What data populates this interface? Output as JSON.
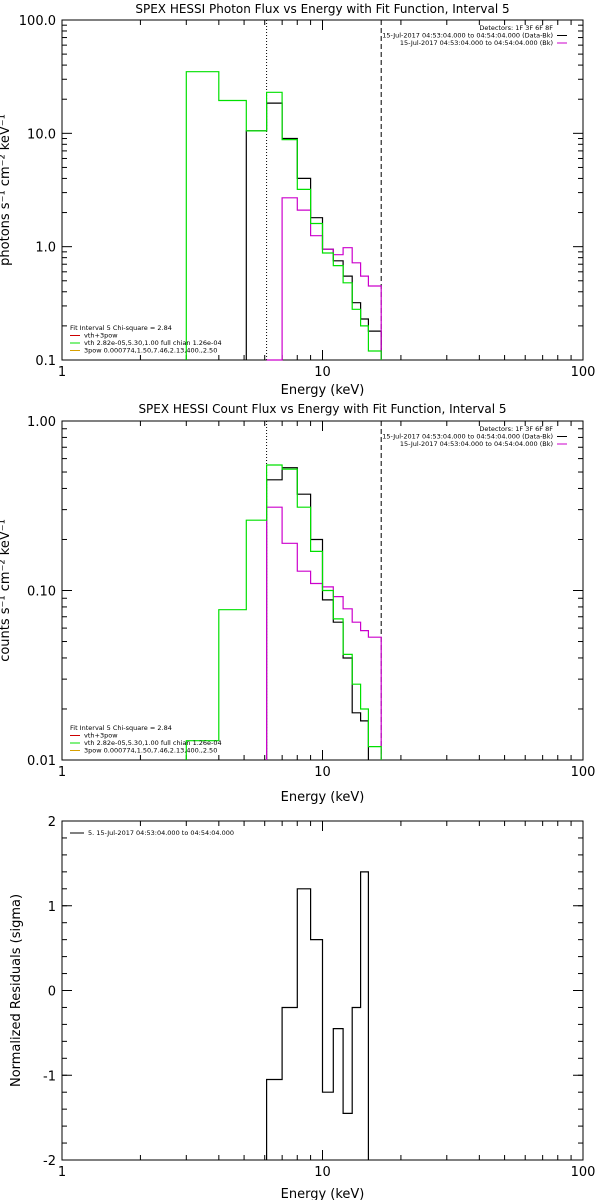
{
  "colors": {
    "black": "#000000",
    "magenta": "#cc00cc",
    "green": "#00e000",
    "red": "#cc0000",
    "orange": "#d8a000",
    "text": "#000000",
    "background": "#ffffff"
  },
  "chart_data": [
    {
      "id": "photon",
      "type": "line",
      "title": "SPEX HESSI Photon Flux vs Energy with Fit Function, Interval 5",
      "xlabel": "Energy (keV)",
      "ylabel": "photons s⁻¹ cm⁻² keV⁻¹",
      "xscale": "log",
      "yscale": "log",
      "xlim": [
        1,
        100
      ],
      "ylim": [
        0.1,
        100
      ],
      "xticks": [
        {
          "v": 1,
          "label": "1"
        },
        {
          "v": 10,
          "label": "10"
        },
        {
          "v": 100,
          "label": "100"
        }
      ],
      "yticks": [
        {
          "v": 0.1,
          "label": "0.1"
        },
        {
          "v": 1,
          "label": "1.0"
        },
        {
          "v": 10,
          "label": "10.0"
        },
        {
          "v": 100,
          "label": "100.0"
        }
      ],
      "vlines": [
        {
          "x": 6.1,
          "style": "dotted"
        },
        {
          "x": 16.8,
          "style": "dashed"
        }
      ],
      "legend_upper": {
        "lines": [
          "Detectors: 1F 3F 6F 8F",
          "15-Jul-2017 04:53:04.000 to 04:54:04.000 (Data-Bk)",
          "15-Jul-2017 04:53:04.000 to 04:54:04.000 (Bk)"
        ]
      },
      "legend_lower": {
        "header": "Fit Interval 5   Chi-square = 2.84",
        "lines": [
          "vth+3pow",
          "vth 2.82e-05,5.30,1.00   full chian 1.26e-04",
          "3pow 0.000774,1.50,7.46,2.13,400.,2.50"
        ]
      },
      "edges": [
        3.0,
        4.0,
        5.1,
        6.1,
        7.0,
        8.0,
        9.0,
        10.0,
        11.0,
        12.0,
        13.0,
        14.0,
        15.0,
        16.8
      ],
      "series": [
        {
          "name": "Data-Bk",
          "color_key": "black",
          "start": 2,
          "values": [
            10.5,
            18.5,
            9.0,
            4.0,
            1.8,
            0.95,
            0.75,
            0.55,
            0.32,
            0.23,
            0.18
          ]
        },
        {
          "name": "Bk",
          "color_key": "magenta",
          "start": 3,
          "values": [
            0.1,
            2.7,
            2.1,
            1.25,
            0.95,
            0.85,
            0.98,
            0.72,
            0.55,
            0.45
          ]
        },
        {
          "name": "vth+3pow",
          "color_key": "green",
          "start": 0,
          "values": [
            35.0,
            19.5,
            10.5,
            23.0,
            8.8,
            3.2,
            1.6,
            0.88,
            0.68,
            0.48,
            0.28,
            0.2,
            0.12
          ]
        }
      ]
    },
    {
      "id": "count",
      "type": "line",
      "title": "SPEX HESSI Count Flux vs Energy with Fit Function, Interval 5",
      "xlabel": "Energy (keV)",
      "ylabel": "counts s⁻¹ cm⁻² keV⁻¹",
      "xscale": "log",
      "yscale": "log",
      "xlim": [
        1,
        100
      ],
      "ylim": [
        0.01,
        1
      ],
      "xticks": [
        {
          "v": 1,
          "label": "1"
        },
        {
          "v": 10,
          "label": "10"
        },
        {
          "v": 100,
          "label": "100"
        }
      ],
      "yticks": [
        {
          "v": 0.01,
          "label": "0.01"
        },
        {
          "v": 0.1,
          "label": "0.10"
        },
        {
          "v": 1,
          "label": "1.00"
        }
      ],
      "vlines": [
        {
          "x": 6.1,
          "style": "dotted"
        },
        {
          "x": 16.8,
          "style": "dashed"
        }
      ],
      "legend_upper": {
        "lines": [
          "Detectors: 1F 3F 6F 8F",
          "15-Jul-2017 04:53:04.000 to 04:54:04.000 (Data-Bk)",
          "15-Jul-2017 04:53:04.000 to 04:54:04.000 (Bk)"
        ]
      },
      "legend_lower": {
        "header": "Fit Interval 5   Chi-square = 2.84",
        "lines": [
          "vth+3pow",
          "vth 2.82e-05,5.30,1.00   full chian 1.26e-04",
          "3pow 0.000774,1.50,7.46,2.13,400.,2.50"
        ]
      },
      "edges": [
        3.0,
        4.0,
        5.1,
        6.1,
        7.0,
        8.0,
        9.0,
        10.0,
        11.0,
        12.0,
        13.0,
        14.0,
        15.0,
        16.8
      ],
      "series": [
        {
          "name": "Data-Bk",
          "color_key": "black",
          "start": 3,
          "values": [
            0.45,
            0.53,
            0.37,
            0.2,
            0.088,
            0.065,
            0.04,
            0.019,
            0.017
          ]
        },
        {
          "name": "Bk",
          "color_key": "magenta",
          "start": 3,
          "values": [
            0.31,
            0.19,
            0.13,
            0.11,
            0.105,
            0.092,
            0.078,
            0.065,
            0.058,
            0.053
          ]
        },
        {
          "name": "vth+3pow",
          "color_key": "green",
          "start": 0,
          "values": [
            0.013,
            0.077,
            0.26,
            0.55,
            0.52,
            0.31,
            0.17,
            0.1,
            0.068,
            0.042,
            0.028,
            0.02,
            0.012
          ]
        }
      ]
    },
    {
      "id": "resid",
      "type": "line",
      "title": "",
      "xlabel": "Energy (keV)",
      "ylabel": "Normalized Residuals (sigma)",
      "xscale": "log",
      "yscale": "linear",
      "xlim": [
        1,
        100
      ],
      "ylim": [
        -2,
        2
      ],
      "xticks": [
        {
          "v": 1,
          "label": "1"
        },
        {
          "v": 10,
          "label": "10"
        },
        {
          "v": 100,
          "label": "100"
        }
      ],
      "yticks": [
        {
          "v": -2,
          "label": "-2"
        },
        {
          "v": -1,
          "label": "-1"
        },
        {
          "v": 0,
          "label": "0"
        },
        {
          "v": 1,
          "label": "1"
        },
        {
          "v": 2,
          "label": "2"
        }
      ],
      "vlines": [],
      "legend_upper": {
        "lines": [
          "5. 15-Jul-2017 04:53:04.000 to 04:54:04.000"
        ]
      },
      "edges": [
        6.1,
        7.0,
        8.0,
        9.0,
        10.0,
        11.0,
        12.0,
        13.0,
        14.0,
        15.0,
        16.8
      ],
      "series": [
        {
          "name": "5. 15-Jul-2017 04:53:04.000 to 04:54:04.000",
          "color_key": "black",
          "start": 0,
          "values": [
            -1.05,
            -0.2,
            1.2,
            0.6,
            -1.2,
            -0.45,
            -1.45,
            -0.2,
            1.4
          ]
        }
      ]
    }
  ]
}
